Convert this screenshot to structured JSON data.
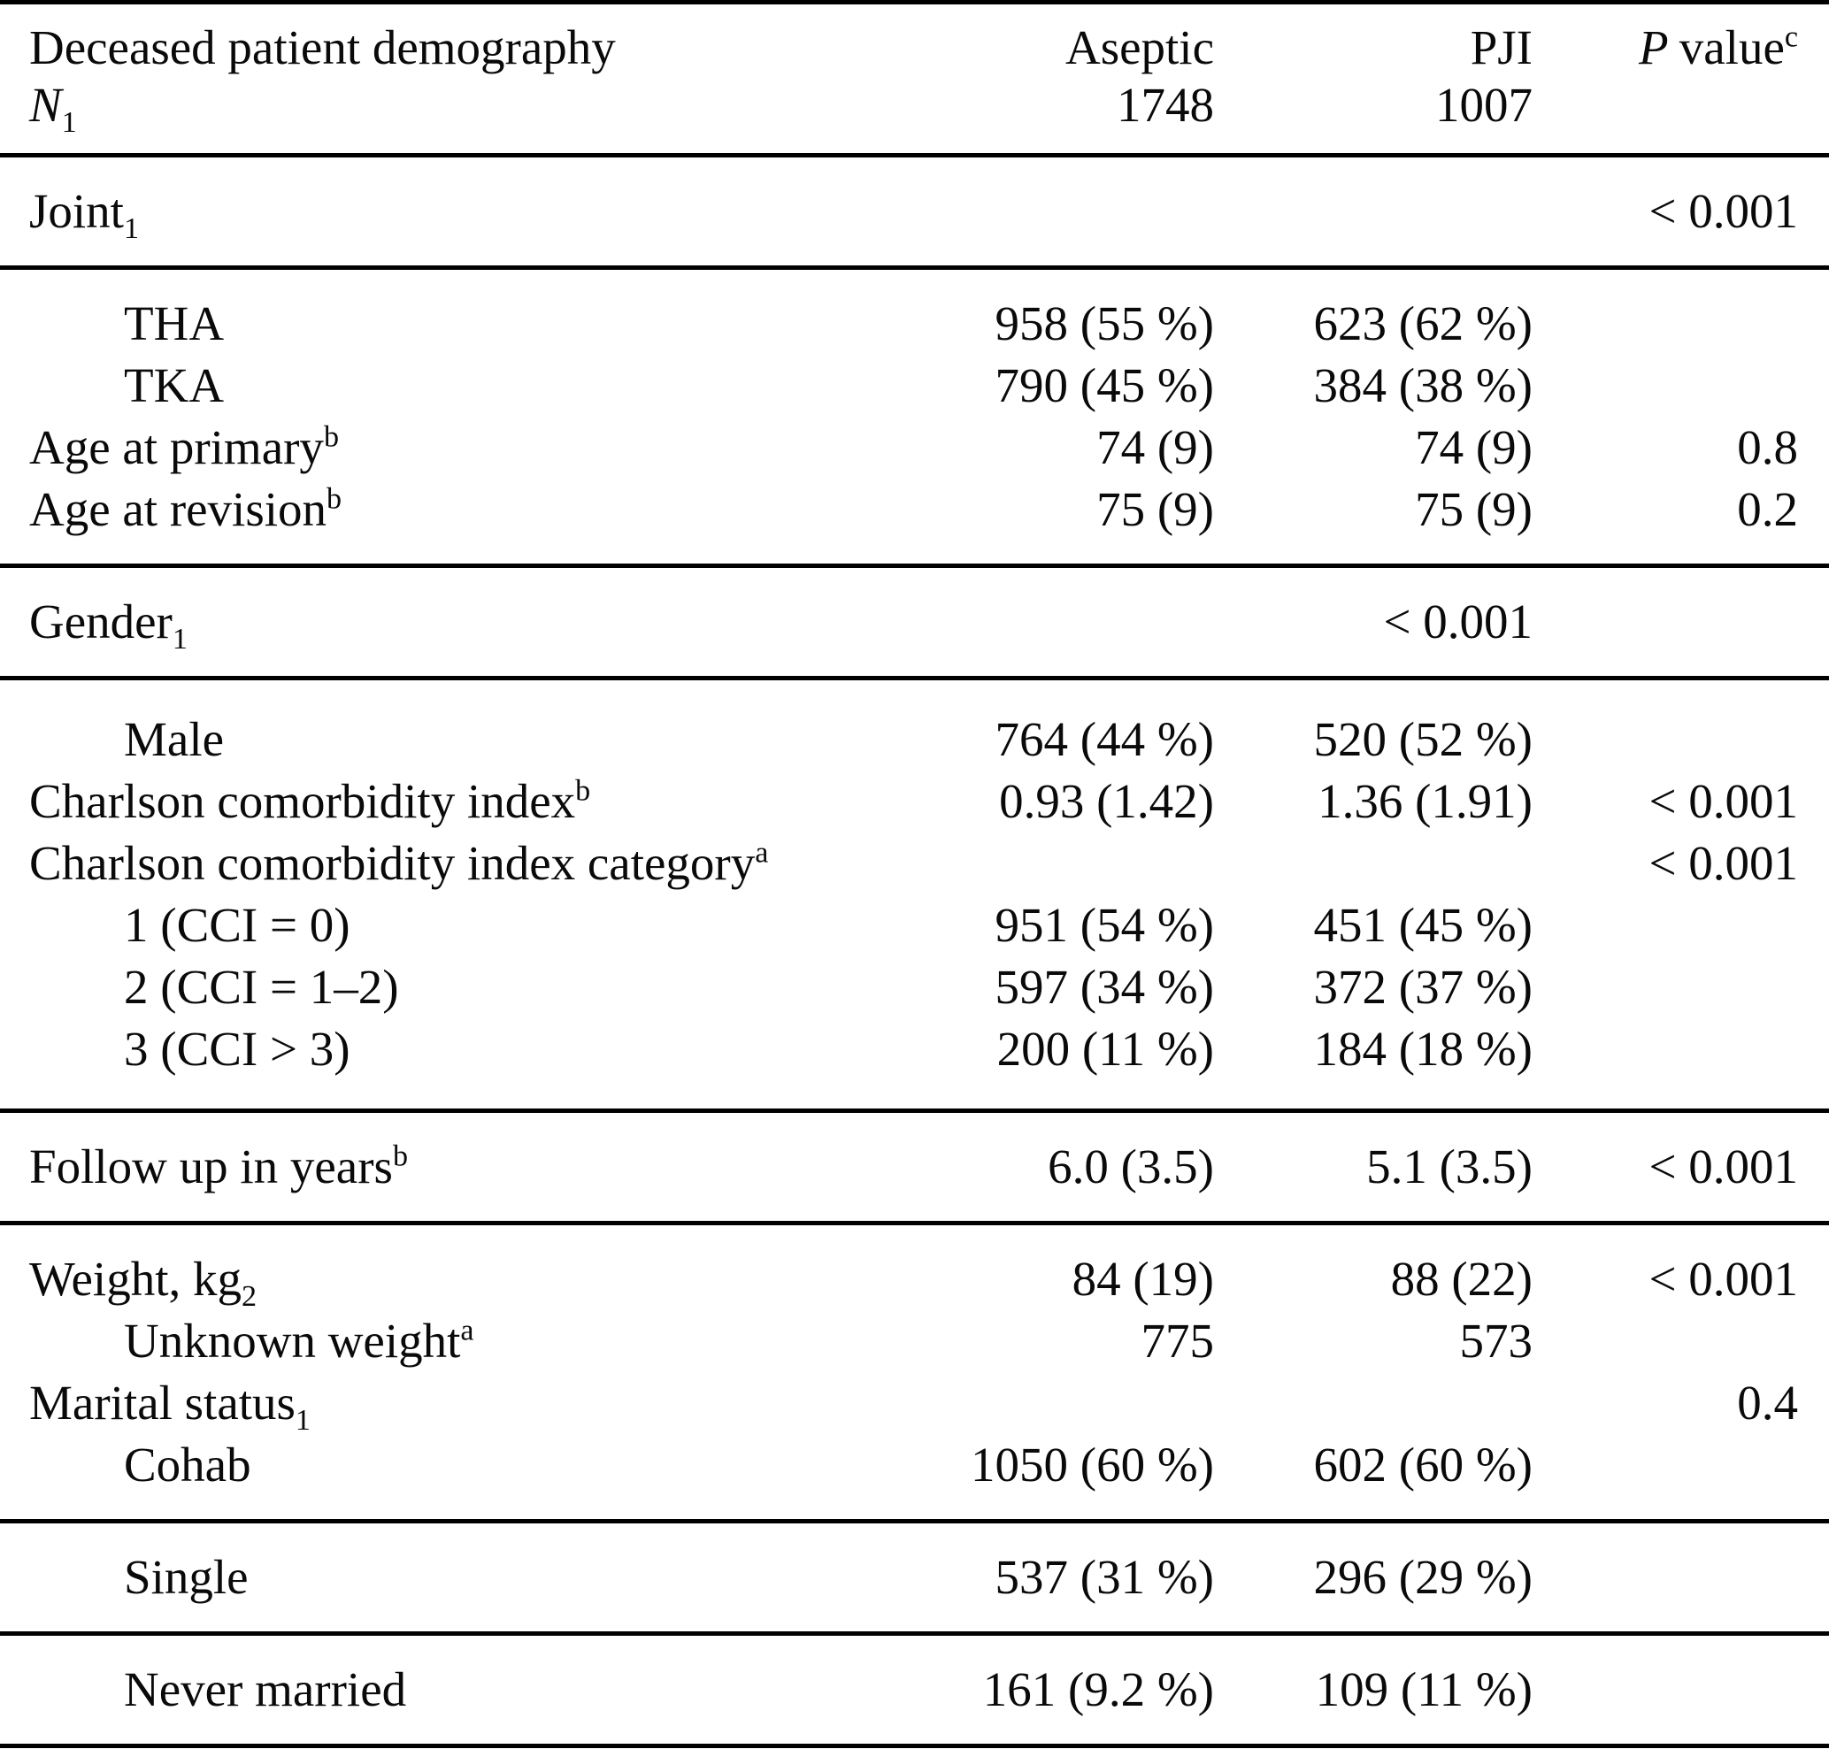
{
  "table": {
    "header": {
      "title": "Deceased patient demography",
      "n_italic": "N",
      "n_sub": "1",
      "aseptic_label": "Aseptic",
      "aseptic_n": "1748",
      "pji_label": "PJI",
      "pji_n": "1007",
      "p_italic": "P",
      "p_label": "value",
      "p_sup": "c"
    },
    "columns": [
      "Deceased patient demography",
      "Aseptic",
      "PJI",
      "P value"
    ],
    "rows": [
      {
        "label": "Joint",
        "sub": "1",
        "aseptic": "",
        "pji": "",
        "p": "< 0.001"
      },
      {
        "label": "THA",
        "indent": true,
        "aseptic": "958 (55 %)",
        "pji": "623 (62 %)",
        "p": ""
      },
      {
        "label": "TKA",
        "indent": true,
        "aseptic": "790 (45 %)",
        "pji": "384 (38 %)",
        "p": ""
      },
      {
        "label": "Age at primary",
        "sup": "b",
        "aseptic": "74 (9)",
        "pji": "74 (9)",
        "p": "0.8"
      },
      {
        "label": "Age at revision",
        "sup": "b",
        "aseptic": "75 (9)",
        "pji": "75 (9)",
        "p": "0.2"
      },
      {
        "label": "Gender",
        "sub": "1",
        "aseptic": "",
        "pji": "",
        "p": "< 0.001",
        "p_rendered_in": "pji"
      },
      {
        "label": "Male",
        "indent": true,
        "aseptic": "764 (44 %)",
        "pji": "520 (52 %)",
        "p": ""
      },
      {
        "label": "Charlson comorbidity index",
        "sup": "b",
        "aseptic": "0.93 (1.42)",
        "pji": "1.36 (1.91)",
        "p": "< 0.001"
      },
      {
        "label": "Charlson comorbidity index category",
        "sup": "a",
        "aseptic": "",
        "pji": "",
        "p": "< 0.001"
      },
      {
        "label": "1 (CCI = 0)",
        "indent": true,
        "aseptic": "951 (54 %)",
        "pji": "451 (45 %)",
        "p": ""
      },
      {
        "label": "2 (CCI = 1–2)",
        "indent": true,
        "aseptic": "597 (34 %)",
        "pji": "372 (37 %)",
        "p": ""
      },
      {
        "label": "3 (CCI > 3)",
        "indent": true,
        "aseptic": "200 (11 %)",
        "pji": "184 (18 %)",
        "p": ""
      },
      {
        "label": "Follow up in years",
        "sup": "b",
        "aseptic": "6.0 (3.5)",
        "pji": "5.1 (3.5)",
        "p": "< 0.001"
      },
      {
        "label": "Weight, kg",
        "sub": "2",
        "aseptic": "84 (19)",
        "pji": "88 (22)",
        "p": "< 0.001"
      },
      {
        "label": "Unknown weight",
        "sup": "a",
        "indent": true,
        "aseptic": "775",
        "pji": "573",
        "p": ""
      },
      {
        "label": "Marital status",
        "sub": "1",
        "aseptic": "",
        "pji": "",
        "p": "0.4"
      },
      {
        "label": "Cohab",
        "indent": true,
        "aseptic": "1050 (60 %)",
        "pji": "602 (60 %)",
        "p": ""
      },
      {
        "label": "Single",
        "indent": true,
        "aseptic": "537 (31 %)",
        "pji": "296 (29 %)",
        "p": ""
      },
      {
        "label": "Never married",
        "indent": true,
        "aseptic": "161 (9.2 %)",
        "pji": "109 (11 %)",
        "p": ""
      }
    ]
  }
}
